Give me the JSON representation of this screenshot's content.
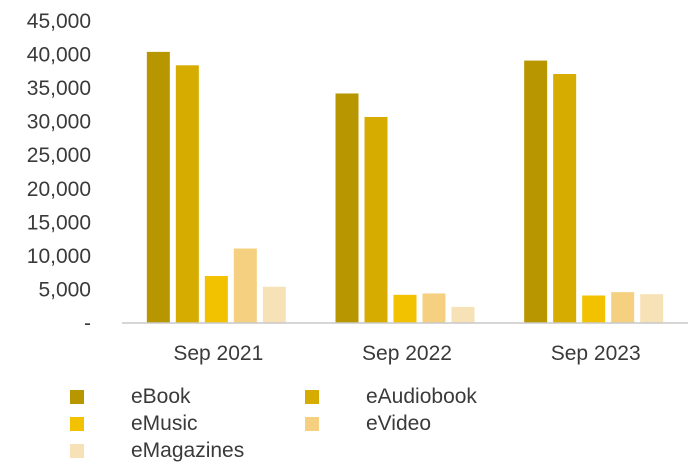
{
  "chart_data": {
    "type": "bar",
    "title": "",
    "xlabel": "",
    "ylabel": "",
    "categories": [
      "Sep 2021",
      "Sep 2022",
      "Sep 2023"
    ],
    "ylim": [
      0,
      45000
    ],
    "yticks": [
      0,
      5000,
      10000,
      15000,
      20000,
      25000,
      30000,
      35000,
      40000,
      45000
    ],
    "ytick_labels": [
      "-",
      "5,000",
      "10,000",
      "15,000",
      "20,000",
      "25,000",
      "30,000",
      "35,000",
      "40,000",
      "45,000"
    ],
    "grid": false,
    "legend_position": "bottom",
    "series": [
      {
        "name": "eBook",
        "color": "#b89600",
        "values": [
          40400,
          34200,
          39100
        ]
      },
      {
        "name": "eAudiobook",
        "color": "#d6ac00",
        "values": [
          38400,
          30700,
          37100
        ]
      },
      {
        "name": "eMusic",
        "color": "#f2c200",
        "values": [
          7000,
          4200,
          4100
        ]
      },
      {
        "name": "eVideo",
        "color": "#f4d080",
        "values": [
          11100,
          4400,
          4600
        ]
      },
      {
        "name": "eMagazines",
        "color": "#f7e2b8",
        "values": [
          5400,
          2400,
          4300
        ]
      }
    ]
  }
}
